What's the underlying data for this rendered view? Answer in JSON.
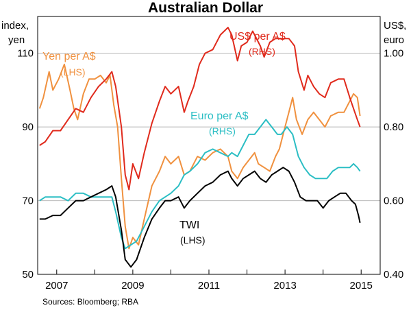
{
  "chart_data": {
    "type": "line",
    "title": "Australian Dollar",
    "left_axis_unit": [
      "index,",
      "yen"
    ],
    "right_axis_unit": [
      "US$,",
      "euro"
    ],
    "x_range": [
      2006.5,
      2015.5
    ],
    "x_ticks": [
      2007,
      2009,
      2011,
      2013,
      2015
    ],
    "left_axis": {
      "range": [
        50,
        120
      ],
      "ticks": [
        50,
        70,
        90,
        110
      ]
    },
    "right_axis": {
      "range": [
        0.4,
        1.1
      ],
      "ticks": [
        "0.40",
        "0.60",
        "0.80",
        "1.00"
      ]
    },
    "source": "Sources:   Bloomberg; RBA",
    "series": [
      {
        "name": "US$ per A$",
        "axis_note": "(RHS)",
        "axis": "right",
        "color": "#e02a1c",
        "points": [
          [
            2006.55,
            0.75
          ],
          [
            2006.7,
            0.76
          ],
          [
            2006.9,
            0.79
          ],
          [
            2007.1,
            0.79
          ],
          [
            2007.3,
            0.82
          ],
          [
            2007.5,
            0.85
          ],
          [
            2007.7,
            0.84
          ],
          [
            2007.9,
            0.88
          ],
          [
            2008.1,
            0.91
          ],
          [
            2008.3,
            0.93
          ],
          [
            2008.45,
            0.95
          ],
          [
            2008.55,
            0.91
          ],
          [
            2008.7,
            0.8
          ],
          [
            2008.8,
            0.67
          ],
          [
            2008.9,
            0.63
          ],
          [
            2009.0,
            0.7
          ],
          [
            2009.15,
            0.66
          ],
          [
            2009.3,
            0.73
          ],
          [
            2009.5,
            0.81
          ],
          [
            2009.7,
            0.87
          ],
          [
            2009.85,
            0.91
          ],
          [
            2010.0,
            0.89
          ],
          [
            2010.2,
            0.91
          ],
          [
            2010.35,
            0.84
          ],
          [
            2010.45,
            0.87
          ],
          [
            2010.6,
            0.91
          ],
          [
            2010.75,
            0.97
          ],
          [
            2010.9,
            1.0
          ],
          [
            2011.1,
            1.01
          ],
          [
            2011.3,
            1.05
          ],
          [
            2011.5,
            1.07
          ],
          [
            2011.6,
            1.05
          ],
          [
            2011.75,
            0.98
          ],
          [
            2011.85,
            1.02
          ],
          [
            2012.0,
            1.03
          ],
          [
            2012.15,
            1.06
          ],
          [
            2012.35,
            1.02
          ],
          [
            2012.45,
            0.99
          ],
          [
            2012.6,
            1.03
          ],
          [
            2012.75,
            1.04
          ],
          [
            2012.9,
            1.04
          ],
          [
            2013.1,
            1.04
          ],
          [
            2013.25,
            1.02
          ],
          [
            2013.35,
            0.95
          ],
          [
            2013.5,
            0.9
          ],
          [
            2013.6,
            0.94
          ],
          [
            2013.75,
            0.91
          ],
          [
            2013.9,
            0.89
          ],
          [
            2014.05,
            0.88
          ],
          [
            2014.2,
            0.92
          ],
          [
            2014.4,
            0.93
          ],
          [
            2014.55,
            0.93
          ],
          [
            2014.7,
            0.88
          ],
          [
            2014.8,
            0.85
          ],
          [
            2014.9,
            0.82
          ],
          [
            2014.97,
            0.8
          ]
        ]
      },
      {
        "name": "Yen per A$",
        "axis_note": "(LHS)",
        "axis": "left",
        "color": "#f0913f",
        "points": [
          [
            2006.55,
            95
          ],
          [
            2006.65,
            98
          ],
          [
            2006.8,
            105
          ],
          [
            2006.9,
            100
          ],
          [
            2007.05,
            103
          ],
          [
            2007.2,
            107
          ],
          [
            2007.35,
            100
          ],
          [
            2007.45,
            95
          ],
          [
            2007.55,
            92
          ],
          [
            2007.7,
            99
          ],
          [
            2007.85,
            103
          ],
          [
            2008.0,
            103
          ],
          [
            2008.15,
            104
          ],
          [
            2008.3,
            102
          ],
          [
            2008.4,
            104
          ],
          [
            2008.5,
            96
          ],
          [
            2008.6,
            90
          ],
          [
            2008.7,
            76
          ],
          [
            2008.8,
            63
          ],
          [
            2008.9,
            57
          ],
          [
            2009.0,
            60
          ],
          [
            2009.15,
            58
          ],
          [
            2009.3,
            65
          ],
          [
            2009.5,
            74
          ],
          [
            2009.7,
            78
          ],
          [
            2009.85,
            82
          ],
          [
            2010.0,
            80
          ],
          [
            2010.2,
            82
          ],
          [
            2010.35,
            77
          ],
          [
            2010.5,
            78
          ],
          [
            2010.7,
            82
          ],
          [
            2010.9,
            81
          ],
          [
            2011.1,
            83
          ],
          [
            2011.3,
            84
          ],
          [
            2011.5,
            82
          ],
          [
            2011.6,
            78
          ],
          [
            2011.75,
            76
          ],
          [
            2011.9,
            79
          ],
          [
            2012.05,
            81
          ],
          [
            2012.2,
            83
          ],
          [
            2012.3,
            80
          ],
          [
            2012.45,
            79
          ],
          [
            2012.6,
            78
          ],
          [
            2012.75,
            82
          ],
          [
            2012.85,
            84
          ],
          [
            2013.0,
            90
          ],
          [
            2013.1,
            94
          ],
          [
            2013.2,
            98
          ],
          [
            2013.3,
            92
          ],
          [
            2013.45,
            88
          ],
          [
            2013.6,
            92
          ],
          [
            2013.75,
            94
          ],
          [
            2013.9,
            92
          ],
          [
            2014.05,
            90
          ],
          [
            2014.2,
            93
          ],
          [
            2014.4,
            94
          ],
          [
            2014.55,
            94
          ],
          [
            2014.7,
            97
          ],
          [
            2014.8,
            99
          ],
          [
            2014.9,
            98
          ],
          [
            2014.97,
            93
          ]
        ]
      },
      {
        "name": "Euro per A$",
        "axis_note": "(RHS)",
        "axis": "right",
        "color": "#2bbec4",
        "points": [
          [
            2006.55,
            0.6
          ],
          [
            2006.7,
            0.61
          ],
          [
            2006.9,
            0.61
          ],
          [
            2007.1,
            0.61
          ],
          [
            2007.3,
            0.6
          ],
          [
            2007.5,
            0.62
          ],
          [
            2007.7,
            0.62
          ],
          [
            2007.9,
            0.61
          ],
          [
            2008.1,
            0.61
          ],
          [
            2008.3,
            0.61
          ],
          [
            2008.45,
            0.61
          ],
          [
            2008.55,
            0.57
          ],
          [
            2008.7,
            0.5
          ],
          [
            2008.8,
            0.47
          ],
          [
            2008.95,
            0.48
          ],
          [
            2009.1,
            0.49
          ],
          [
            2009.3,
            0.53
          ],
          [
            2009.5,
            0.57
          ],
          [
            2009.7,
            0.6
          ],
          [
            2009.85,
            0.61
          ],
          [
            2010.0,
            0.62
          ],
          [
            2010.2,
            0.64
          ],
          [
            2010.35,
            0.67
          ],
          [
            2010.5,
            0.68
          ],
          [
            2010.7,
            0.7
          ],
          [
            2010.9,
            0.73
          ],
          [
            2011.1,
            0.74
          ],
          [
            2011.3,
            0.73
          ],
          [
            2011.5,
            0.72
          ],
          [
            2011.6,
            0.73
          ],
          [
            2011.75,
            0.72
          ],
          [
            2011.9,
            0.75
          ],
          [
            2012.05,
            0.78
          ],
          [
            2012.2,
            0.78
          ],
          [
            2012.35,
            0.8
          ],
          [
            2012.5,
            0.82
          ],
          [
            2012.65,
            0.8
          ],
          [
            2012.8,
            0.78
          ],
          [
            2012.9,
            0.78
          ],
          [
            2013.05,
            0.8
          ],
          [
            2013.2,
            0.78
          ],
          [
            2013.35,
            0.72
          ],
          [
            2013.5,
            0.69
          ],
          [
            2013.65,
            0.67
          ],
          [
            2013.8,
            0.66
          ],
          [
            2013.95,
            0.66
          ],
          [
            2014.1,
            0.66
          ],
          [
            2014.25,
            0.68
          ],
          [
            2014.4,
            0.69
          ],
          [
            2014.55,
            0.69
          ],
          [
            2014.7,
            0.69
          ],
          [
            2014.8,
            0.7
          ],
          [
            2014.9,
            0.69
          ],
          [
            2014.97,
            0.68
          ]
        ]
      },
      {
        "name": "TWI",
        "axis_note": "(LHS)",
        "axis": "left",
        "color": "#000000",
        "points": [
          [
            2006.55,
            65
          ],
          [
            2006.7,
            65
          ],
          [
            2006.9,
            66
          ],
          [
            2007.1,
            66
          ],
          [
            2007.3,
            68
          ],
          [
            2007.5,
            70
          ],
          [
            2007.7,
            70
          ],
          [
            2007.9,
            71
          ],
          [
            2008.1,
            72
          ],
          [
            2008.3,
            73
          ],
          [
            2008.45,
            74
          ],
          [
            2008.55,
            71
          ],
          [
            2008.7,
            62
          ],
          [
            2008.8,
            54
          ],
          [
            2008.95,
            52
          ],
          [
            2009.1,
            54
          ],
          [
            2009.3,
            60
          ],
          [
            2009.5,
            65
          ],
          [
            2009.7,
            68
          ],
          [
            2009.85,
            70
          ],
          [
            2010.0,
            70
          ],
          [
            2010.2,
            71
          ],
          [
            2010.35,
            68
          ],
          [
            2010.5,
            70
          ],
          [
            2010.7,
            72
          ],
          [
            2010.9,
            74
          ],
          [
            2011.1,
            75
          ],
          [
            2011.3,
            77
          ],
          [
            2011.5,
            78
          ],
          [
            2011.6,
            76
          ],
          [
            2011.75,
            74
          ],
          [
            2011.9,
            76
          ],
          [
            2012.05,
            77
          ],
          [
            2012.2,
            78
          ],
          [
            2012.35,
            76
          ],
          [
            2012.5,
            75
          ],
          [
            2012.65,
            77
          ],
          [
            2012.8,
            78
          ],
          [
            2012.95,
            79
          ],
          [
            2013.1,
            78
          ],
          [
            2013.25,
            75
          ],
          [
            2013.4,
            71
          ],
          [
            2013.55,
            70
          ],
          [
            2013.7,
            70
          ],
          [
            2013.85,
            70
          ],
          [
            2014.0,
            68
          ],
          [
            2014.15,
            70
          ],
          [
            2014.3,
            71
          ],
          [
            2014.45,
            72
          ],
          [
            2014.6,
            72
          ],
          [
            2014.75,
            70
          ],
          [
            2014.85,
            69
          ],
          [
            2014.93,
            66
          ],
          [
            2014.97,
            64
          ]
        ]
      }
    ],
    "annotations": [
      {
        "series": "US$ per A$"
      },
      {
        "series": "Yen per A$"
      },
      {
        "series": "Euro per A$"
      },
      {
        "series": "TWI"
      }
    ]
  }
}
